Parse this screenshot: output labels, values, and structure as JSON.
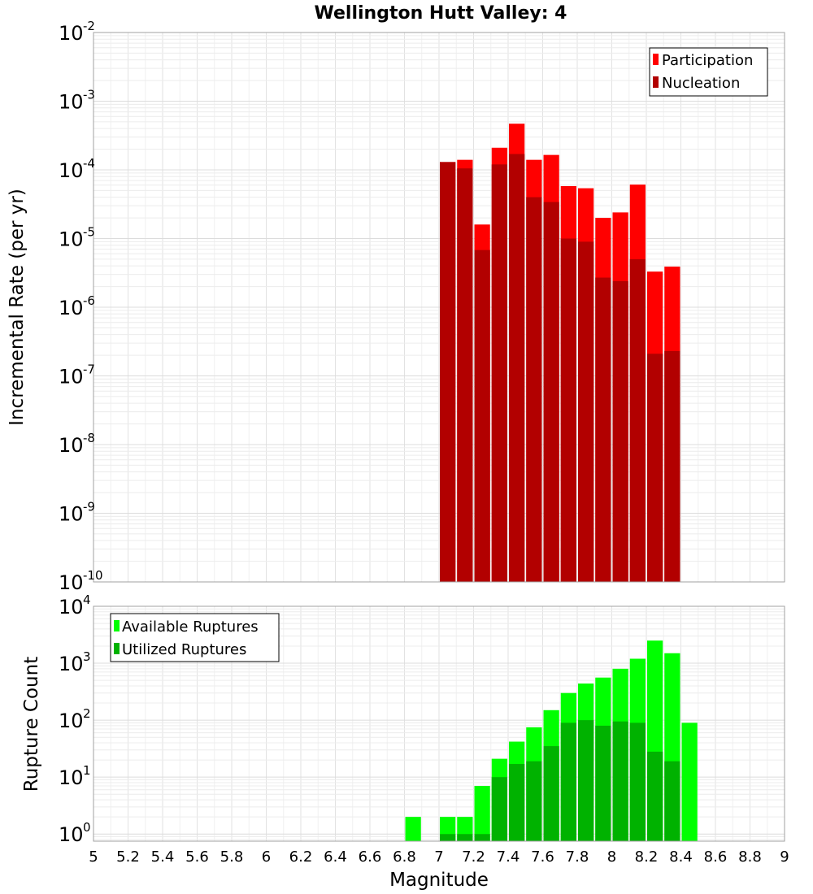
{
  "chart_data": [
    {
      "type": "bar",
      "title": "Wellington Hutt Valley: 4",
      "xlabel": "",
      "ylabel": "Incremental Rate (per yr)",
      "yscale": "log",
      "ylim": [
        1e-10,
        0.01
      ],
      "xlim": [
        5,
        9
      ],
      "bin_width": 0.1,
      "grid": true,
      "legend_position": "top-right",
      "y_tick_exponents": [
        -10,
        -9,
        -8,
        -7,
        -6,
        -5,
        -4,
        -3,
        -2
      ],
      "series": [
        {
          "name": "Participation",
          "color": "#ff0000",
          "x": [
            7.05,
            7.15,
            7.25,
            7.35,
            7.45,
            7.55,
            7.65,
            7.75,
            7.85,
            7.95,
            8.05,
            8.15,
            8.25,
            8.35
          ],
          "values": [
            0.00013,
            0.00014,
            1.6e-05,
            0.00021,
            0.00047,
            0.00014,
            0.000165,
            5.8e-05,
            5.4e-05,
            2e-05,
            2.4e-05,
            6.1e-05,
            3.3e-06,
            3.9e-06
          ]
        },
        {
          "name": "Nucleation",
          "color": "#b20000",
          "x": [
            7.05,
            7.15,
            7.25,
            7.35,
            7.45,
            7.55,
            7.65,
            7.75,
            7.85,
            7.95,
            8.05,
            8.15,
            8.25,
            8.35
          ],
          "values": [
            0.00013,
            0.000105,
            6.8e-06,
            0.00012,
            0.00017,
            4e-05,
            3.4e-05,
            1e-05,
            9e-06,
            2.7e-06,
            2.4e-06,
            5e-06,
            2.1e-07,
            2.3e-07
          ]
        }
      ]
    },
    {
      "type": "bar",
      "title": "",
      "xlabel": "Magnitude",
      "ylabel": "Rupture Count",
      "yscale": "log",
      "ylim": [
        0.75,
        10000
      ],
      "xlim": [
        5,
        9
      ],
      "bin_width": 0.1,
      "grid": true,
      "legend_position": "top-left",
      "y_tick_exponents": [
        0,
        1,
        2,
        3,
        4
      ],
      "x_tick_labels": [
        "5",
        "5.2",
        "5.4",
        "5.6",
        "5.8",
        "6",
        "6.2",
        "6.4",
        "6.6",
        "6.8",
        "7",
        "7.2",
        "7.4",
        "7.6",
        "7.8",
        "8",
        "8.2",
        "8.4",
        "8.6",
        "8.8",
        "9"
      ],
      "series": [
        {
          "name": "Available Ruptures",
          "color": "#00ff00",
          "x": [
            6.85,
            7.05,
            7.15,
            7.25,
            7.35,
            7.45,
            7.55,
            7.65,
            7.75,
            7.85,
            7.95,
            8.05,
            8.15,
            8.25,
            8.35,
            8.45
          ],
          "values": [
            2,
            2,
            2,
            7,
            21,
            42,
            75,
            150,
            300,
            440,
            560,
            800,
            1200,
            2500,
            1500,
            90
          ]
        },
        {
          "name": "Utilized Ruptures",
          "color": "#00b200",
          "x": [
            7.05,
            7.15,
            7.25,
            7.35,
            7.45,
            7.55,
            7.65,
            7.75,
            7.85,
            7.95,
            8.05,
            8.15,
            8.25,
            8.35
          ],
          "values": [
            1,
            1,
            1,
            10,
            17,
            19,
            35,
            90,
            100,
            80,
            95,
            90,
            28,
            19
          ]
        }
      ]
    }
  ]
}
